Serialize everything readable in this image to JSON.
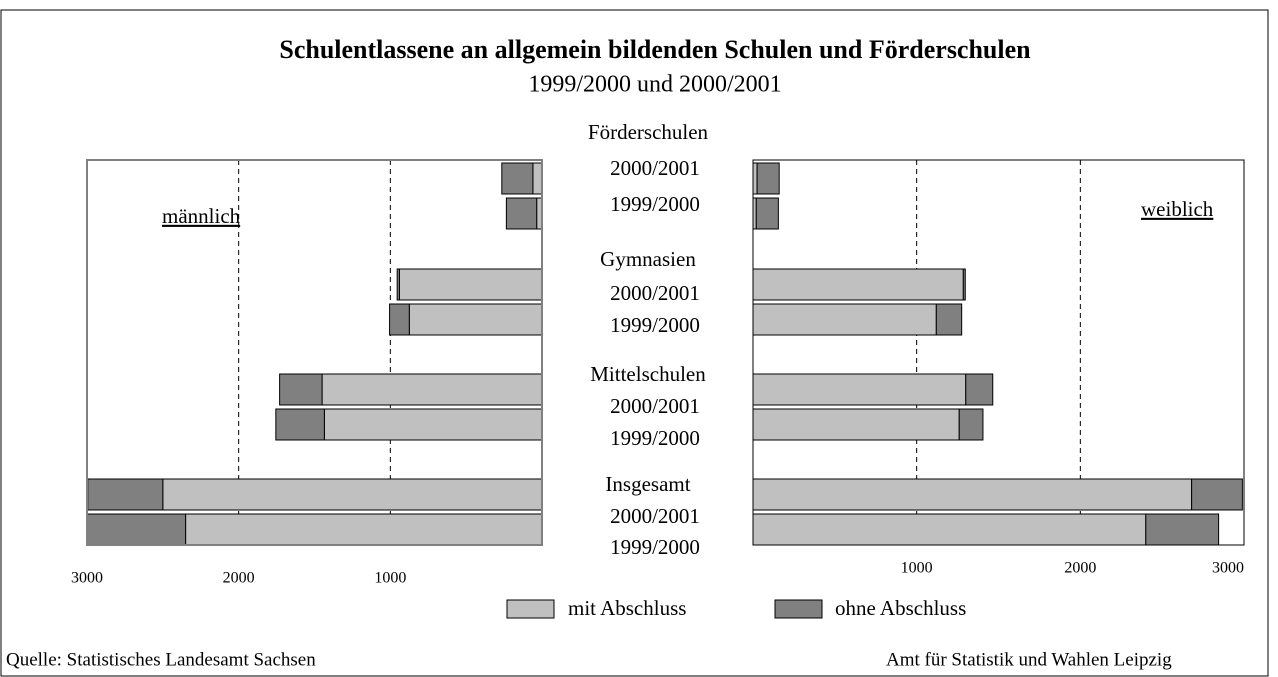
{
  "chart_data": [
    {
      "type": "bar",
      "title": "Schulentlassene an allgemein bildenden Schulen und Förderschulen",
      "subtitle": "1999/2000 und 2000/2001",
      "panel_label": "männlich",
      "orientation": "horizontal",
      "x_reversed": true,
      "stacked": true,
      "groups": [
        "Förderschulen",
        "Gymnasien",
        "Mittelschulen",
        "Insgesamt"
      ],
      "categories": [
        "2000/2001",
        "1999/2000",
        "2000/2001",
        "1999/2000",
        "2000/2001",
        "1999/2000",
        "2000/2001",
        "1999/2000"
      ],
      "series": [
        {
          "name": "mit Abschluss",
          "color": "#c0c0c0",
          "values": [
            60,
            35,
            940,
            875,
            1450,
            1435,
            2500,
            2350
          ]
        },
        {
          "name": "ohne Abschluss",
          "color": "#808080",
          "values": [
            205,
            200,
            15,
            130,
            280,
            320,
            495,
            650
          ]
        }
      ],
      "xlim": [
        0,
        3000
      ],
      "xticks": [
        3000,
        2000,
        1000
      ],
      "grid": true
    },
    {
      "type": "bar",
      "panel_label": "weiblich",
      "orientation": "horizontal",
      "x_reversed": false,
      "stacked": true,
      "series": [
        {
          "name": "mit Abschluss",
          "color": "#c0c0c0",
          "values": [
            25,
            20,
            1285,
            1120,
            1300,
            1260,
            2680,
            2400
          ]
        },
        {
          "name": "ohne Abschluss",
          "color": "#808080",
          "values": [
            135,
            135,
            12,
            155,
            165,
            145,
            310,
            445
          ]
        }
      ],
      "xlim": [
        0,
        3000
      ],
      "xticks": [
        1000,
        2000,
        3000
      ],
      "grid": true
    }
  ],
  "footer": {
    "source": "Quelle: Statistisches Landesamt Sachsen",
    "publisher": "Amt für Statistik und Wahlen Leipzig"
  }
}
